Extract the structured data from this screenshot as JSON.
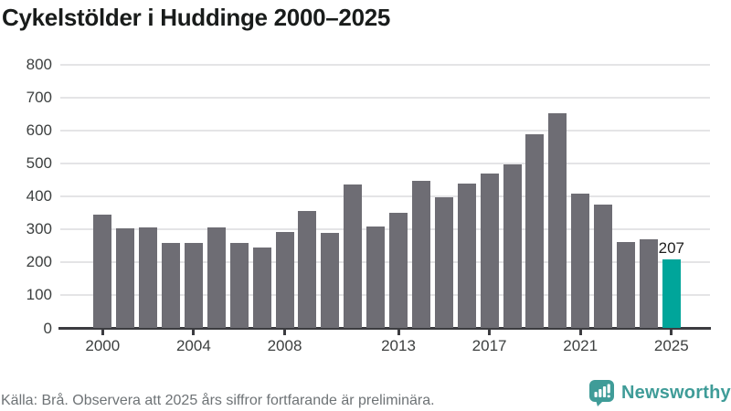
{
  "title": "Cykelstölder i Huddinge 2000–2025",
  "footer": {
    "source_note": "Källa: Brå. Observera att 2025 års siffror fortfarande är preliminära.",
    "brand": "Newsworthy"
  },
  "colors": {
    "bar": "#6e6d74",
    "highlight": "#00a59a",
    "grid": "#e4e4e6",
    "axis": "#3c3c40",
    "brand": "#3f9c98",
    "tick_label": "#3d4040",
    "annotation": "#1e1e1e"
  },
  "chart_data": {
    "type": "bar",
    "title": "Cykelstölder i Huddinge 2000–2025",
    "xlabel": "",
    "ylabel": "",
    "x": [
      2000,
      2001,
      2002,
      2003,
      2004,
      2005,
      2006,
      2007,
      2008,
      2009,
      2010,
      2011,
      2012,
      2013,
      2014,
      2015,
      2016,
      2017,
      2018,
      2019,
      2020,
      2021,
      2022,
      2023,
      2024,
      2025
    ],
    "values": [
      344,
      302,
      306,
      258,
      258,
      306,
      258,
      244,
      292,
      355,
      288,
      436,
      307,
      350,
      448,
      397,
      439,
      470,
      498,
      589,
      652,
      409,
      374,
      261,
      270,
      207
    ],
    "highlight_year": 2025,
    "annotation": {
      "year": 2025,
      "text": "207"
    },
    "x_tick_labels": [
      "2000",
      "2004",
      "2008",
      "2013",
      "2017",
      "2021",
      "2025"
    ],
    "y_ticks": [
      0,
      100,
      200,
      300,
      400,
      500,
      600,
      700,
      800
    ],
    "ylim": [
      0,
      800
    ],
    "grid": true,
    "legend": null
  }
}
